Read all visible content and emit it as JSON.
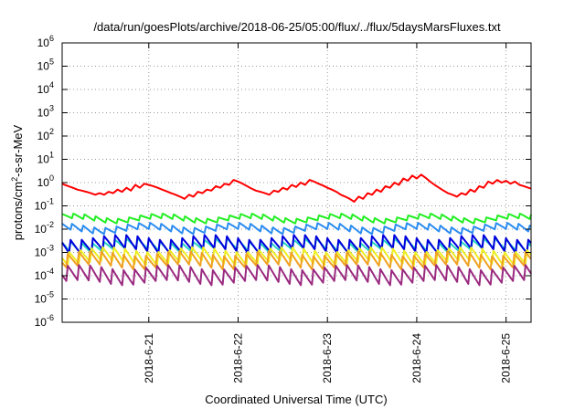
{
  "chart_data": {
    "type": "line",
    "title": "/data/run/goesPlots/archive/2018-06-25/05:00/flux/../flux/5daysMarsFluxes.txt",
    "xlabel": "Coordinated Universal Time (UTC)",
    "ylabel": "protons/cm²-s-sr-MeV",
    "ylabel_parts": {
      "pre": "protons/cm",
      "sup": "2",
      "post": "-s-sr-MeV"
    },
    "yscale": "log",
    "ylim_exp": [
      -6,
      6
    ],
    "y_ticks": [
      {
        "base": "10",
        "exp": "-6"
      },
      {
        "base": "10",
        "exp": "-5"
      },
      {
        "base": "10",
        "exp": "-4"
      },
      {
        "base": "10",
        "exp": "-3"
      },
      {
        "base": "10",
        "exp": "-2"
      },
      {
        "base": "10",
        "exp": "-1"
      },
      {
        "base": "10",
        "exp": "0"
      },
      {
        "base": "10",
        "exp": "1"
      },
      {
        "base": "10",
        "exp": "2"
      },
      {
        "base": "10",
        "exp": "3"
      },
      {
        "base": "10",
        "exp": "4"
      },
      {
        "base": "10",
        "exp": "5"
      },
      {
        "base": "10",
        "exp": "6"
      }
    ],
    "xlim_days": [
      0.0,
      5.25
    ],
    "x_ticks": [
      {
        "label": "2018-6-21",
        "day": 0.97
      },
      {
        "label": "2018-6-22",
        "day": 1.97
      },
      {
        "label": "2018-6-23",
        "day": 2.97
      },
      {
        "label": "2018-6-24",
        "day": 3.97
      },
      {
        "label": "2018-6-25",
        "day": 4.97
      }
    ],
    "grid": true,
    "legend": "none",
    "series": [
      {
        "color": "#ff0000",
        "days": [
          0.0,
          0.03,
          0.07,
          0.12,
          0.17,
          0.22,
          0.27,
          0.32,
          0.37,
          0.42,
          0.47,
          0.52,
          0.57,
          0.62,
          0.67,
          0.72,
          0.77,
          0.82,
          0.87,
          0.92,
          0.97,
          1.02,
          1.07,
          1.12,
          1.17,
          1.22,
          1.27,
          1.32,
          1.37,
          1.42,
          1.47,
          1.52,
          1.57,
          1.62,
          1.67,
          1.72,
          1.77,
          1.82,
          1.87,
          1.92,
          1.97,
          2.02,
          2.07,
          2.12,
          2.17,
          2.22,
          2.27,
          2.32,
          2.37,
          2.42,
          2.47,
          2.52,
          2.57,
          2.62,
          2.67,
          2.72,
          2.77,
          2.82,
          2.87,
          2.92,
          2.97,
          3.02,
          3.07,
          3.12,
          3.17,
          3.22,
          3.27,
          3.32,
          3.37,
          3.42,
          3.47,
          3.52,
          3.57,
          3.62,
          3.67,
          3.72,
          3.77,
          3.82,
          3.87,
          3.92,
          3.97,
          4.02,
          4.07,
          4.12,
          4.17,
          4.22,
          4.27,
          4.32,
          4.37,
          4.42,
          4.47,
          4.52,
          4.57,
          4.62,
          4.67,
          4.72,
          4.77,
          4.82,
          4.87,
          4.92,
          4.97,
          5.02,
          5.07,
          5.12,
          5.17,
          5.22,
          5.25
        ],
        "values": [
          0.9,
          0.8,
          0.7,
          0.6,
          0.5,
          0.45,
          0.4,
          0.35,
          0.3,
          0.35,
          0.3,
          0.4,
          0.35,
          0.5,
          0.4,
          0.6,
          0.45,
          0.8,
          0.6,
          0.9,
          0.8,
          0.7,
          0.6,
          0.5,
          0.42,
          0.35,
          0.3,
          0.25,
          0.2,
          0.3,
          0.25,
          0.4,
          0.35,
          0.5,
          0.45,
          0.7,
          0.6,
          0.9,
          0.8,
          1.3,
          1.1,
          0.9,
          0.7,
          0.55,
          0.45,
          0.4,
          0.35,
          0.3,
          0.45,
          0.4,
          0.6,
          0.5,
          0.8,
          0.65,
          1.0,
          0.8,
          1.3,
          1.1,
          0.9,
          0.75,
          0.6,
          0.5,
          0.4,
          0.3,
          0.25,
          0.2,
          0.15,
          0.25,
          0.2,
          0.35,
          0.3,
          0.5,
          0.4,
          0.7,
          0.6,
          1.0,
          0.8,
          1.5,
          1.2,
          2.0,
          1.5,
          2.2,
          1.6,
          1.1,
          0.8,
          0.6,
          0.45,
          0.35,
          0.3,
          0.25,
          0.35,
          0.3,
          0.5,
          0.4,
          0.7,
          0.6,
          1.1,
          0.9,
          1.3,
          1.0,
          1.2,
          0.9,
          1.1,
          0.8,
          0.7,
          0.6,
          0.55
        ]
      },
      {
        "color": "#22ee22",
        "base": 0.03,
        "amp": 1.7
      },
      {
        "color": "#2a8cf0",
        "base": 0.011,
        "amp": 2.0
      },
      {
        "color": "#22d4c0",
        "base": 0.0019,
        "amp": 3.0
      },
      {
        "color": "#0000dd",
        "base": 0.0025,
        "amp": 4.5
      },
      {
        "color": "#eeee22",
        "base": 0.0007,
        "amp": 4.5
      },
      {
        "color": "#f0a020",
        "base": 0.00045,
        "amp": 4.5
      },
      {
        "color": "#9a2a80",
        "base": 0.00012,
        "amp": 5.5
      }
    ],
    "sawtooth_period_days": 0.125
  }
}
